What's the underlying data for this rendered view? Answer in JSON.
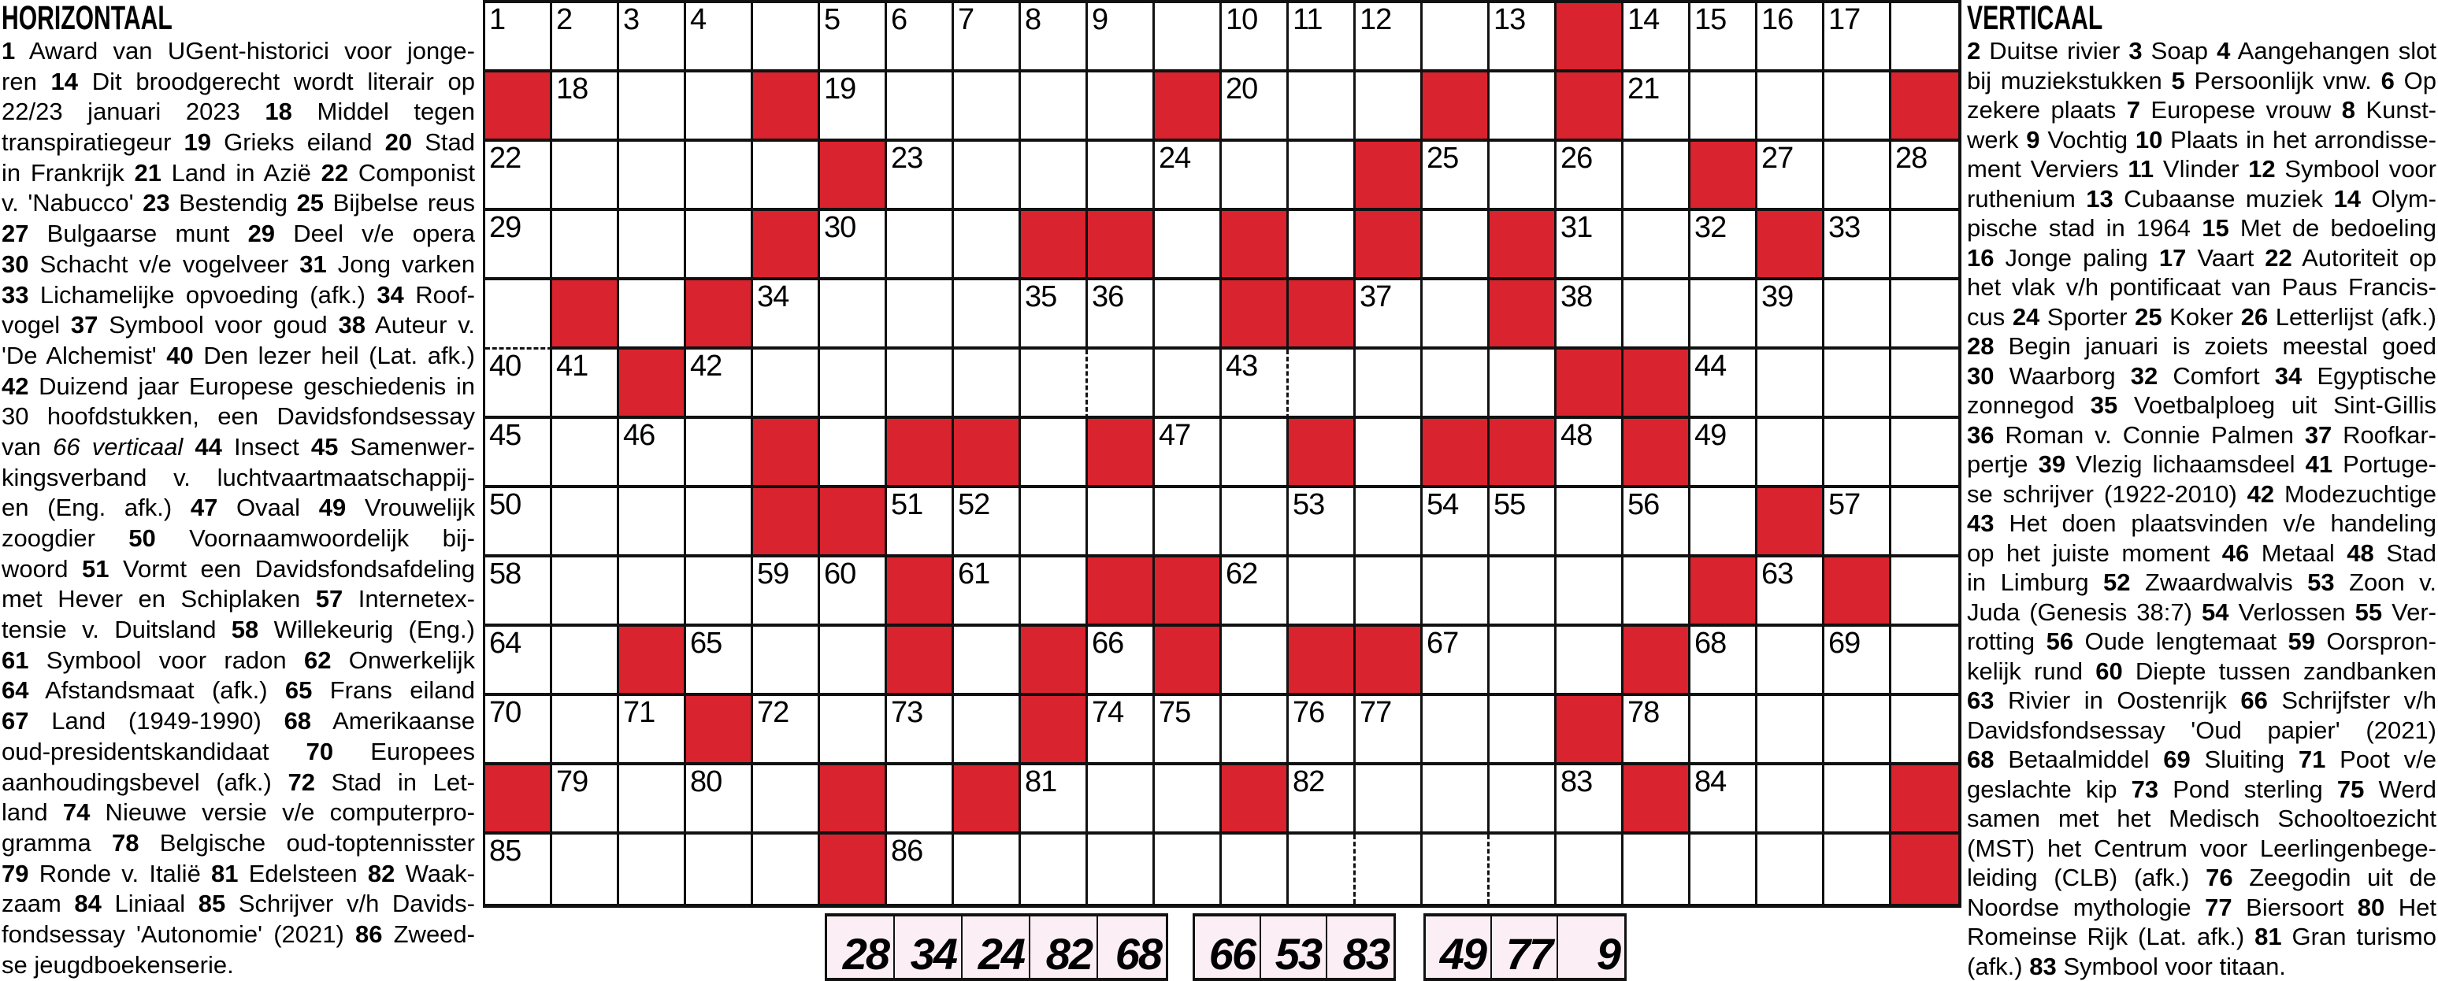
{
  "horizontal": {
    "title": "HORIZONTAAL",
    "lines": [
      {
        "t": "**1** Award van UGent-historici voor jonge-"
      },
      {
        "t": "ren **14** Dit broodgerecht wordt literair op"
      },
      {
        "t": "22/23 januari 2023 **18** Middel tegen"
      },
      {
        "t": "transpiratiegeur **19** Grieks eiland **20** Stad"
      },
      {
        "t": "in Frankrijk **21** Land in Azië **22** Componist"
      },
      {
        "t": "v. 'Nabucco' **23** Bestendig **25** Bijbelse reus"
      },
      {
        "t": "**27** Bulgaarse munt **29** Deel v/e opera"
      },
      {
        "t": "**30** Schacht v/e vogelveer **31** Jong varken"
      },
      {
        "t": "**33** Lichamelijke opvoeding (afk.) **34** Roof-"
      },
      {
        "t": "vogel **37** Symbool voor goud **38** Auteur v."
      },
      {
        "t": "'De Alchemist' **40** Den lezer heil (Lat. afk.)"
      },
      {
        "t": "**42** Duizend jaar Europese geschiedenis in"
      },
      {
        "t": "30 hoofdstukken, een Davidsfondsessay"
      },
      {
        "t": "van *66 verticaal* **44** Insect **45** Samenwer-"
      },
      {
        "t": "kingsverband v. luchtvaartmaatschappij-"
      },
      {
        "t": "en (Eng. afk.) **47** Ovaal **49** Vrouwelijk"
      },
      {
        "t": "zoogdier **50** Voornaamwoordelijk bij-"
      },
      {
        "t": "woord **51** Vormt een Davidsfondsafdeling"
      },
      {
        "t": "met Hever en Schiplaken **57** Internetex-"
      },
      {
        "t": "tensie v. Duitsland **58** Willekeurig (Eng.)"
      },
      {
        "t": "**61** Symbool voor radon **62** Onwerkelijk"
      },
      {
        "t": "**64** Afstandsmaat (afk.) **65** Frans eiland"
      },
      {
        "t": "**67** Land (1949-1990) **68** Amerikaanse"
      },
      {
        "t": "oud-presidentskandidaat **70** Europees"
      },
      {
        "t": "aanhoudingsbevel (afk.) **72** Stad in Let-"
      },
      {
        "t": "land **74** Nieuwe versie v/e computerpro-"
      },
      {
        "t": "gramma **78** Belgische oud-toptennisster"
      },
      {
        "t": "**79** Ronde v. Italië **81** Edelsteen **82** Waak-"
      },
      {
        "t": "zaam **84** Liniaal **85** Schrijver v/h Davids-"
      },
      {
        "t": "fondsessay 'Autonomie' (2021) **86** Zweed-"
      },
      {
        "t": "se jeugdboekenserie.",
        "end": true
      }
    ]
  },
  "vertical": {
    "title": "VERTICAAL",
    "lines": [
      {
        "t": "**2** Duitse rivier **3** Soap **4** Aangehangen slot"
      },
      {
        "t": "bij muziekstukken **5** Persoonlijk vnw. **6** Op"
      },
      {
        "t": "zekere plaats **7** Europese vrouw **8** Kunst-"
      },
      {
        "t": "werk **9** Vochtig **10** Plaats in het arrondisse-"
      },
      {
        "t": "ment Verviers **11** Vlinder **12** Symbool voor"
      },
      {
        "t": "ruthenium **13** Cubaanse muziek **14** Olym-"
      },
      {
        "t": "pische stad in 1964 **15** Met de bedoeling"
      },
      {
        "t": "**16** Jonge paling **17** Vaart **22** Autoriteit op"
      },
      {
        "t": "het vlak v/h pontificaat van Paus Francis-"
      },
      {
        "t": "cus **24** Sporter **25** Koker **26** Letterlijst (afk.)"
      },
      {
        "t": "**28** Begin januari is zoiets meestal goed"
      },
      {
        "t": "**30** Waarborg **32** Comfort **34** Egyptische"
      },
      {
        "t": "zonnegod **35** Voetbalploeg uit Sint-Gillis"
      },
      {
        "t": "**36** Roman v. Connie Palmen **37** Roofkar-"
      },
      {
        "t": "pertje **39** Vlezig lichaamsdeel **41** Portuge-"
      },
      {
        "t": "se schrijver (1922-2010) **42** Modezuchtige"
      },
      {
        "t": "**43** Het doen plaatsvinden v/e handeling"
      },
      {
        "t": "op het juiste moment **46** Metaal **48** Stad"
      },
      {
        "t": "in Limburg **52** Zwaardwalvis **53** Zoon v."
      },
      {
        "t": "Juda (Genesis 38:7) **54** Verlossen **55** Ver-"
      },
      {
        "t": "rotting **56** Oude lengtemaat **59** Oorspron-"
      },
      {
        "t": "kelijk rund **60** Diepte tussen zandbanken"
      },
      {
        "t": "**63** Rivier in Oostenrijk **66** Schrijfster v/h"
      },
      {
        "t": "Davidsfondsessay 'Oud papier' (2021)"
      },
      {
        "t": "**68** Betaalmiddel **69** Sluiting **71** Poot v/e"
      },
      {
        "t": "geslachte kip **73** Pond sterling **75** Werd"
      },
      {
        "t": "samen met het Medisch Schooltoezicht"
      },
      {
        "t": "(MST) het Centrum voor Leerlingenbege-"
      },
      {
        "t": "leiding (CLB) (afk.) **76** Zeegodin uit de"
      },
      {
        "t": "Noordse mythologie **77** Biersoort **80** Het"
      },
      {
        "t": "Romeinse Rijk (Lat. afk.) **81** Gran turismo"
      },
      {
        "t": "(afk.) **83** Symbool voor titaan.",
        "end": true
      }
    ]
  },
  "grid": {
    "rows": 13,
    "cols": 22,
    "red_color": "#d9232e",
    "line_color": "#111111",
    "cells": [
      [
        "1",
        "2",
        "3",
        "4",
        "",
        "5",
        "6",
        "7",
        "8",
        "9",
        "",
        "10",
        "11",
        "12",
        "",
        "13",
        "#",
        "14",
        "15",
        "16",
        "17",
        ""
      ],
      [
        "#",
        "18",
        "",
        "",
        "#",
        "19",
        "",
        "",
        "",
        "",
        "#",
        "20",
        "",
        "",
        "#",
        "",
        "#",
        "21",
        "",
        "",
        "",
        "#"
      ],
      [
        "22",
        "",
        "",
        "",
        "",
        "#",
        "23",
        "",
        "",
        "",
        "24",
        "",
        "",
        "#",
        "25",
        "",
        "26",
        "",
        "#",
        "27",
        "",
        "28"
      ],
      [
        "29",
        "",
        "",
        "",
        "#",
        "30",
        "",
        "",
        "#",
        "#",
        "",
        "#",
        "",
        "#",
        "",
        "#",
        "31",
        "",
        "32",
        "#",
        "33",
        ""
      ],
      [
        "",
        "#",
        "",
        "#",
        "34",
        "",
        "",
        "",
        "35",
        "36",
        "",
        "#",
        "#",
        "37",
        "",
        "#",
        "38",
        "",
        "",
        "39",
        "",
        ""
      ],
      [
        "40",
        "41",
        "#",
        "42",
        "",
        "",
        "",
        "",
        "",
        "",
        "",
        "43",
        "",
        "",
        "",
        "",
        "#",
        "#",
        "44",
        "",
        "",
        ""
      ],
      [
        "45",
        "",
        "46",
        "",
        "#",
        "",
        "#",
        "#",
        "",
        "#",
        "47",
        "",
        "#",
        "",
        "#",
        "#",
        "48",
        "#",
        "49",
        "",
        "",
        ""
      ],
      [
        "50",
        "",
        "",
        "",
        "#",
        "#",
        "51",
        "52",
        "",
        "",
        "",
        "",
        "53",
        "",
        "54",
        "55",
        "",
        "56",
        "",
        "#",
        "57",
        ""
      ],
      [
        "58",
        "",
        "",
        "",
        "59",
        "60",
        "#",
        "61",
        "",
        "#",
        "#",
        "62",
        "",
        "",
        "",
        "",
        "",
        "",
        "#",
        "63",
        "#",
        ""
      ],
      [
        "64",
        "",
        "#",
        "65",
        "",
        "",
        "#",
        "",
        "#",
        "66",
        "#",
        "",
        "#",
        "#",
        "67",
        "",
        "",
        "#",
        "68",
        "",
        "69",
        ""
      ],
      [
        "70",
        "",
        "71",
        "#",
        "72",
        "",
        "73",
        "",
        "#",
        "74",
        "75",
        "",
        "76",
        "77",
        "",
        "",
        "#",
        "78",
        "",
        "",
        "",
        ""
      ],
      [
        "#",
        "79",
        "",
        "80",
        "",
        "#",
        "",
        "#",
        "81",
        "",
        "",
        "#",
        "82",
        "",
        "",
        "",
        "83",
        "#",
        "84",
        "",
        "",
        "#"
      ],
      [
        "85",
        "",
        "",
        "",
        "",
        "#",
        "86",
        "",
        "",
        "",
        "",
        "",
        "",
        "",
        "",
        "",
        "",
        "",
        "",
        "",
        "",
        "#"
      ]
    ],
    "dashed_borders": [
      {
        "row": 6,
        "col": 1,
        "side": "top"
      },
      {
        "row": 6,
        "col": 10,
        "side": "left"
      },
      {
        "row": 6,
        "col": 13,
        "side": "left"
      },
      {
        "row": 13,
        "col": 14,
        "side": "left"
      },
      {
        "row": 13,
        "col": 16,
        "side": "left"
      }
    ]
  },
  "solution_boxes": {
    "fill": "#fbeef4",
    "groups": [
      [
        "28",
        "34",
        "24",
        "82",
        "68"
      ],
      [
        "66",
        "53",
        "83"
      ],
      [
        "49",
        "77",
        "9"
      ]
    ]
  }
}
